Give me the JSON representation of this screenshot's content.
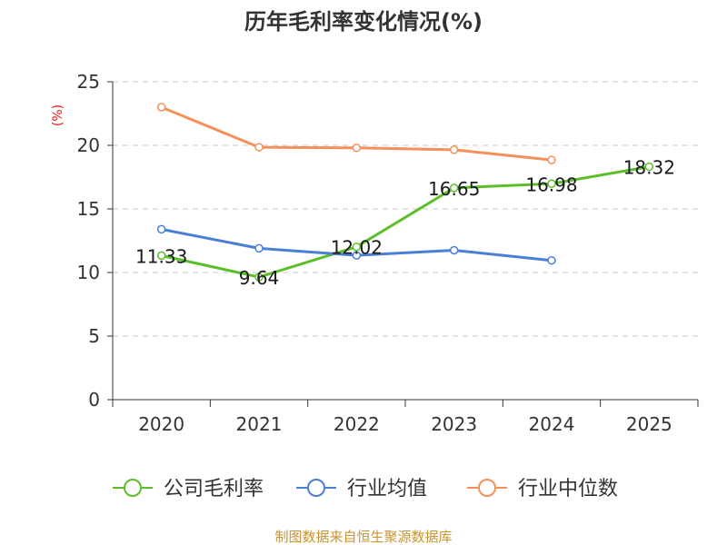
{
  "chart_data": {
    "type": "line",
    "title": "历年毛利率变化情况(%)",
    "ylabel": "(%)",
    "xlabel": "",
    "categories": [
      "2020",
      "2021",
      "2022",
      "2023",
      "2024",
      "2025"
    ],
    "ylim": [
      0,
      25
    ],
    "yticks": [
      0,
      5,
      10,
      15,
      20,
      25
    ],
    "grid": "horizontal-dashed",
    "legend_position": "bottom",
    "series": [
      {
        "name": "公司毛利率",
        "color": "#5cbf2a",
        "values": [
          11.33,
          9.64,
          12.02,
          16.65,
          16.98,
          18.32
        ],
        "labels": [
          "11.33",
          "9.64",
          "12.02",
          "16.65",
          "16.98",
          "18.32"
        ]
      },
      {
        "name": "行业均值",
        "color": "#4a7fd6",
        "values": [
          13.4,
          11.9,
          11.35,
          11.75,
          10.95,
          null
        ]
      },
      {
        "name": "行业中位数",
        "color": "#f5905a",
        "values": [
          23.0,
          19.85,
          19.8,
          19.65,
          18.85,
          null
        ]
      }
    ],
    "source": "制图数据来自恒生聚源数据库"
  }
}
